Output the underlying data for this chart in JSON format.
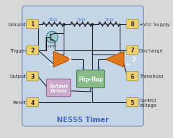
{
  "title": "NE555 Timer",
  "title_color": "#4466bb",
  "outer_bg": "#d8d8d8",
  "chip_bg": "#c5d5e8",
  "chip_border": "#8899bb",
  "pin_box_color": "#f0d070",
  "pin_box_edge": "#aaa030",
  "wire_color": "#222222",
  "resistor_color": "#222222",
  "resistor_labels": [
    "5kΩ",
    "5kΩ",
    "5kΩ"
  ],
  "resistor_label_color": "#5577cc",
  "label_color": "#333333",
  "comp_fill": "#e07820",
  "comp_edge": "#b05000",
  "comp1_label": "1",
  "comp2_label": "2",
  "comp_minus": "-",
  "comp_plus": "+",
  "flipflop_fill": "#88bb88",
  "flipflop_edge": "#447744",
  "flipflop_label": "Flip-flop",
  "output_driver_fill": "#ccaacc",
  "output_driver_edge": "#885588",
  "output_driver_label": "Output\nDriver",
  "npn_fill": "#99cccc",
  "npn_edge": "#447788",
  "npn_label": "NPN",
  "labels_left": [
    [
      "Ground",
      "1"
    ],
    [
      "Trigger",
      "2"
    ],
    [
      "Output",
      "3"
    ],
    [
      "Reset",
      "4"
    ]
  ],
  "labels_right": [
    [
      "+Vcc Supply",
      "8"
    ],
    [
      "Discharge",
      "7"
    ],
    [
      "Threshold",
      "6"
    ],
    [
      "Control\nVoltage",
      "5"
    ]
  ]
}
